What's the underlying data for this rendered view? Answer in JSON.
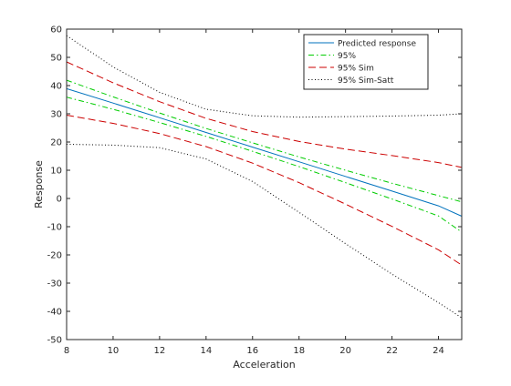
{
  "chart_data": {
    "type": "line",
    "title": "",
    "xlabel": "Acceleration",
    "ylabel": "Response",
    "xlim": [
      8,
      25
    ],
    "ylim": [
      -50,
      60
    ],
    "xticks": [
      8,
      10,
      12,
      14,
      16,
      18,
      20,
      22,
      24
    ],
    "yticks": [
      -50,
      -40,
      -30,
      -20,
      -10,
      0,
      10,
      20,
      30,
      40,
      50,
      60
    ],
    "grid": false,
    "legend_position": "top-right",
    "series": [
      {
        "name": "Predicted response",
        "color": "#0072bd",
        "dash": "solid",
        "x": [
          8,
          10,
          12,
          14,
          16,
          18,
          20,
          22,
          24,
          25
        ],
        "y": [
          38.9,
          33.8,
          28.6,
          23.4,
          18.2,
          13.0,
          7.8,
          2.6,
          -2.6,
          -6.3
        ]
      },
      {
        "name": "95%",
        "color": "#00cc00",
        "dash": "dashdot",
        "x": [
          8,
          10,
          12,
          14,
          16,
          18,
          20,
          22,
          24,
          25
        ],
        "y": [
          41.9,
          36.0,
          30.3,
          24.8,
          19.7,
          14.7,
          10.0,
          5.4,
          1.0,
          -1.2
        ]
      },
      {
        "name": "95%",
        "color": "#00cc00",
        "dash": "dashdot",
        "x": [
          8,
          10,
          12,
          14,
          16,
          18,
          20,
          22,
          24,
          25
        ],
        "y": [
          35.9,
          31.6,
          26.9,
          22.0,
          16.7,
          11.3,
          5.6,
          -0.2,
          -6.2,
          -11.9
        ]
      },
      {
        "name": "95% Sim",
        "color": "#cc0000",
        "dash": "dashed",
        "x": [
          8,
          10,
          12,
          14,
          16,
          18,
          20,
          22,
          24,
          25
        ],
        "y": [
          48.4,
          41.0,
          34.3,
          28.4,
          23.7,
          20.2,
          17.5,
          15.2,
          12.7,
          11.0
        ]
      },
      {
        "name": "95% Sim",
        "color": "#cc0000",
        "dash": "dashed",
        "x": [
          8,
          10,
          12,
          14,
          16,
          18,
          20,
          22,
          24,
          25
        ],
        "y": [
          29.5,
          26.6,
          23.0,
          18.4,
          12.5,
          5.6,
          -2.0,
          -9.9,
          -18.2,
          -23.6
        ]
      },
      {
        "name": "95% Sim-Satt",
        "color": "#000000",
        "dash": "dotted",
        "x": [
          8,
          10,
          12,
          14,
          16,
          18,
          20,
          22,
          24,
          25
        ],
        "y": [
          57.7,
          46.6,
          37.6,
          31.6,
          29.3,
          28.8,
          29.0,
          29.2,
          29.5,
          30.0
        ]
      },
      {
        "name": "95% Sim-Satt",
        "color": "#000000",
        "dash": "dotted",
        "x": [
          8,
          10,
          12,
          14,
          16,
          18,
          20,
          22,
          24,
          25
        ],
        "y": [
          19.2,
          18.9,
          18.0,
          14.0,
          6.0,
          -4.9,
          -16.0,
          -26.8,
          -36.9,
          -42.3
        ]
      }
    ],
    "legend": [
      {
        "label": "Predicted response",
        "color": "#0072bd",
        "dash": "solid"
      },
      {
        "label": "95%",
        "color": "#00cc00",
        "dash": "dashdot"
      },
      {
        "label": "95% Sim",
        "color": "#cc0000",
        "dash": "dashed"
      },
      {
        "label": "95% Sim-Satt",
        "color": "#000000",
        "dash": "dotted"
      }
    ]
  }
}
